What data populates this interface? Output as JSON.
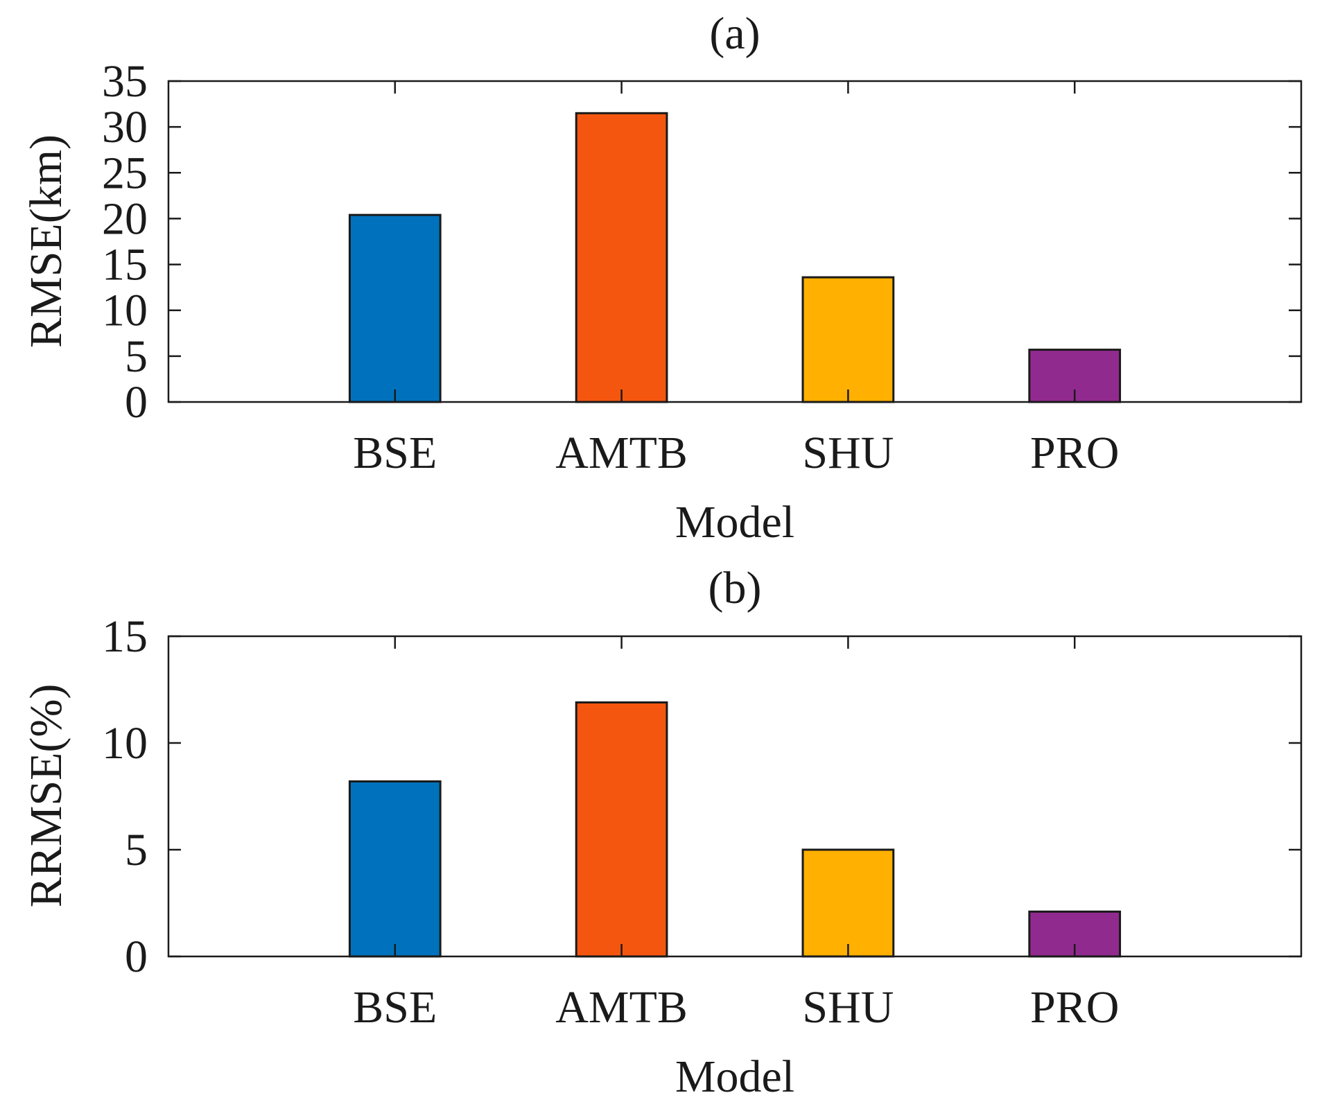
{
  "chart_data": [
    {
      "type": "bar",
      "title": "(a)",
      "xlabel": "Model",
      "ylabel": "RMSE(km)",
      "categories": [
        "BSE",
        "AMTB",
        "SHU",
        "PRO"
      ],
      "values": [
        20.4,
        31.5,
        13.6,
        5.7
      ],
      "colors": [
        "#0072BD",
        "#F5560F",
        "#FFB000",
        "#912A8F"
      ],
      "ylim": [
        0,
        35
      ],
      "yticks": [
        0,
        5,
        10,
        15,
        20,
        25,
        30,
        35
      ],
      "xlim": [
        0,
        5
      ],
      "grid": false
    },
    {
      "type": "bar",
      "title": "(b)",
      "xlabel": "Model",
      "ylabel": "RRMSE(%)",
      "categories": [
        "BSE",
        "AMTB",
        "SHU",
        "PRO"
      ],
      "values": [
        8.2,
        11.9,
        5.0,
        2.1
      ],
      "colors": [
        "#0072BD",
        "#F5560F",
        "#FFB000",
        "#912A8F"
      ],
      "ylim": [
        0,
        15
      ],
      "yticks": [
        0,
        5,
        10,
        15
      ],
      "xlim": [
        0,
        5
      ],
      "grid": false
    }
  ]
}
